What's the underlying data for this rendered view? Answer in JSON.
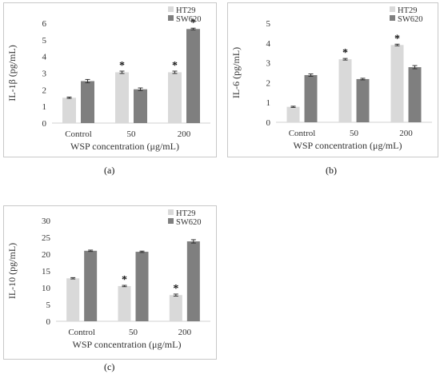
{
  "colors": {
    "ht29": "#d9d9d9",
    "sw620": "#7f7f7f",
    "axis": "#d0d0d0",
    "text": "#333333"
  },
  "captions": {
    "a": "(a)",
    "b": "(b)",
    "c": "(c)"
  },
  "chart_data": [
    {
      "id": "a",
      "type": "bar",
      "categories": [
        "Control",
        "50",
        "200"
      ],
      "series": [
        {
          "name": "HT29",
          "values": [
            1.52,
            3.05,
            3.05
          ],
          "errors": [
            0.04,
            0.07,
            0.07
          ],
          "significant": [
            false,
            true,
            true
          ]
        },
        {
          "name": "SW620",
          "values": [
            2.52,
            2.03,
            5.65
          ],
          "errors": [
            0.1,
            0.08,
            0.05
          ],
          "significant": [
            false,
            false,
            true
          ]
        }
      ],
      "significance_mark": "*",
      "xlabel": "WSP concentration (μg/mL)",
      "ylabel": "IL-1β (pg/mL)",
      "ylim": [
        0,
        6
      ],
      "yticks": [
        0,
        1,
        2,
        3,
        4,
        5,
        6
      ],
      "legend": "top-right"
    },
    {
      "id": "b",
      "type": "bar",
      "categories": [
        "Control",
        "50",
        "200"
      ],
      "series": [
        {
          "name": "HT29",
          "values": [
            0.78,
            3.18,
            3.9
          ],
          "errors": [
            0.03,
            0.04,
            0.04
          ],
          "significant": [
            false,
            true,
            true
          ]
        },
        {
          "name": "SW620",
          "values": [
            2.38,
            2.18,
            2.78
          ],
          "errors": [
            0.06,
            0.04,
            0.08
          ],
          "significant": [
            false,
            false,
            false
          ]
        }
      ],
      "significance_mark": "*",
      "xlabel": "WSP concentration (μg/mL)",
      "ylabel": "IL-6 (pg/mL)",
      "ylim": [
        0,
        5
      ],
      "yticks": [
        0,
        1,
        2,
        3,
        4,
        5
      ],
      "legend": "top-right"
    },
    {
      "id": "c",
      "type": "bar",
      "categories": [
        "Control",
        "50",
        "200"
      ],
      "series": [
        {
          "name": "HT29",
          "values": [
            12.8,
            10.5,
            7.8
          ],
          "errors": [
            0.2,
            0.2,
            0.3
          ],
          "significant": [
            false,
            true,
            true
          ]
        },
        {
          "name": "SW620",
          "values": [
            21.0,
            20.7,
            23.8
          ],
          "errors": [
            0.2,
            0.2,
            0.5
          ],
          "significant": [
            false,
            false,
            false
          ]
        }
      ],
      "significance_mark": "*",
      "xlabel": "WSP concentration (μg/mL)",
      "ylabel": "IL-10 (pg/mL)",
      "ylim": [
        0,
        30
      ],
      "yticks": [
        0,
        5,
        10,
        15,
        20,
        25,
        30
      ],
      "legend": "top-right"
    }
  ]
}
